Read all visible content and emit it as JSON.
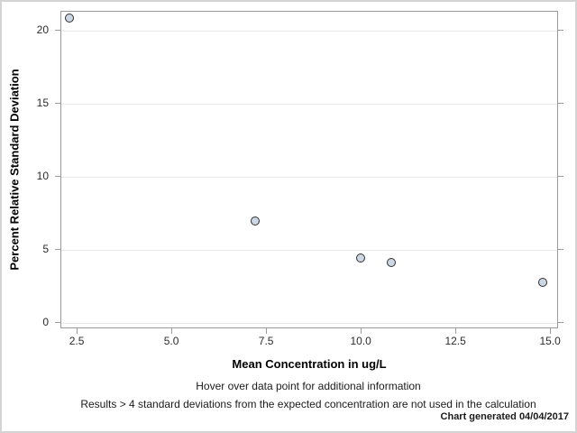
{
  "chart": {
    "y_axis_title": "Percent Relative Standard Deviation",
    "x_axis_title": "Mean Concentration in ug/L",
    "footnotes": {
      "line1": "Hover over data point for additional information",
      "line2": "Results > 4 standard deviations from the expected concentration are not used in the calculation",
      "generated": "Chart generated 04/04/2017"
    }
  },
  "chart_data": {
    "type": "scatter",
    "title": "",
    "xlabel": "Mean Concentration in ug/L",
    "ylabel": "Percent Relative Standard Deviation",
    "points": [
      {
        "x": 2.3,
        "y": 20.8
      },
      {
        "x": 7.2,
        "y": 6.9
      },
      {
        "x": 10.0,
        "y": 4.4
      },
      {
        "x": 10.8,
        "y": 4.1
      },
      {
        "x": 14.8,
        "y": 2.7
      }
    ],
    "x_ticks": {
      "values": [
        2.5,
        5.0,
        7.5,
        10.0,
        12.5,
        15.0
      ],
      "labels": [
        "2.5",
        "5.0",
        "7.5",
        "10.0",
        "12.5",
        "15.0"
      ]
    },
    "y_ticks": {
      "values": [
        0,
        5,
        10,
        15,
        20
      ],
      "labels": [
        "0",
        "5",
        "10",
        "15",
        "20"
      ]
    },
    "xlim": [
      2.07,
      15.21
    ],
    "ylim": [
      -0.43,
      21.3
    ],
    "grid": "horizontal",
    "legend": "none",
    "marker": {
      "shape": "circle",
      "fill": "#ccd7e5",
      "stroke": "#2e2e2e"
    },
    "colors": {
      "frame": "#9a9a9a",
      "gridline": "#e8e8e8",
      "page_border": "#d4d4d4"
    }
  }
}
